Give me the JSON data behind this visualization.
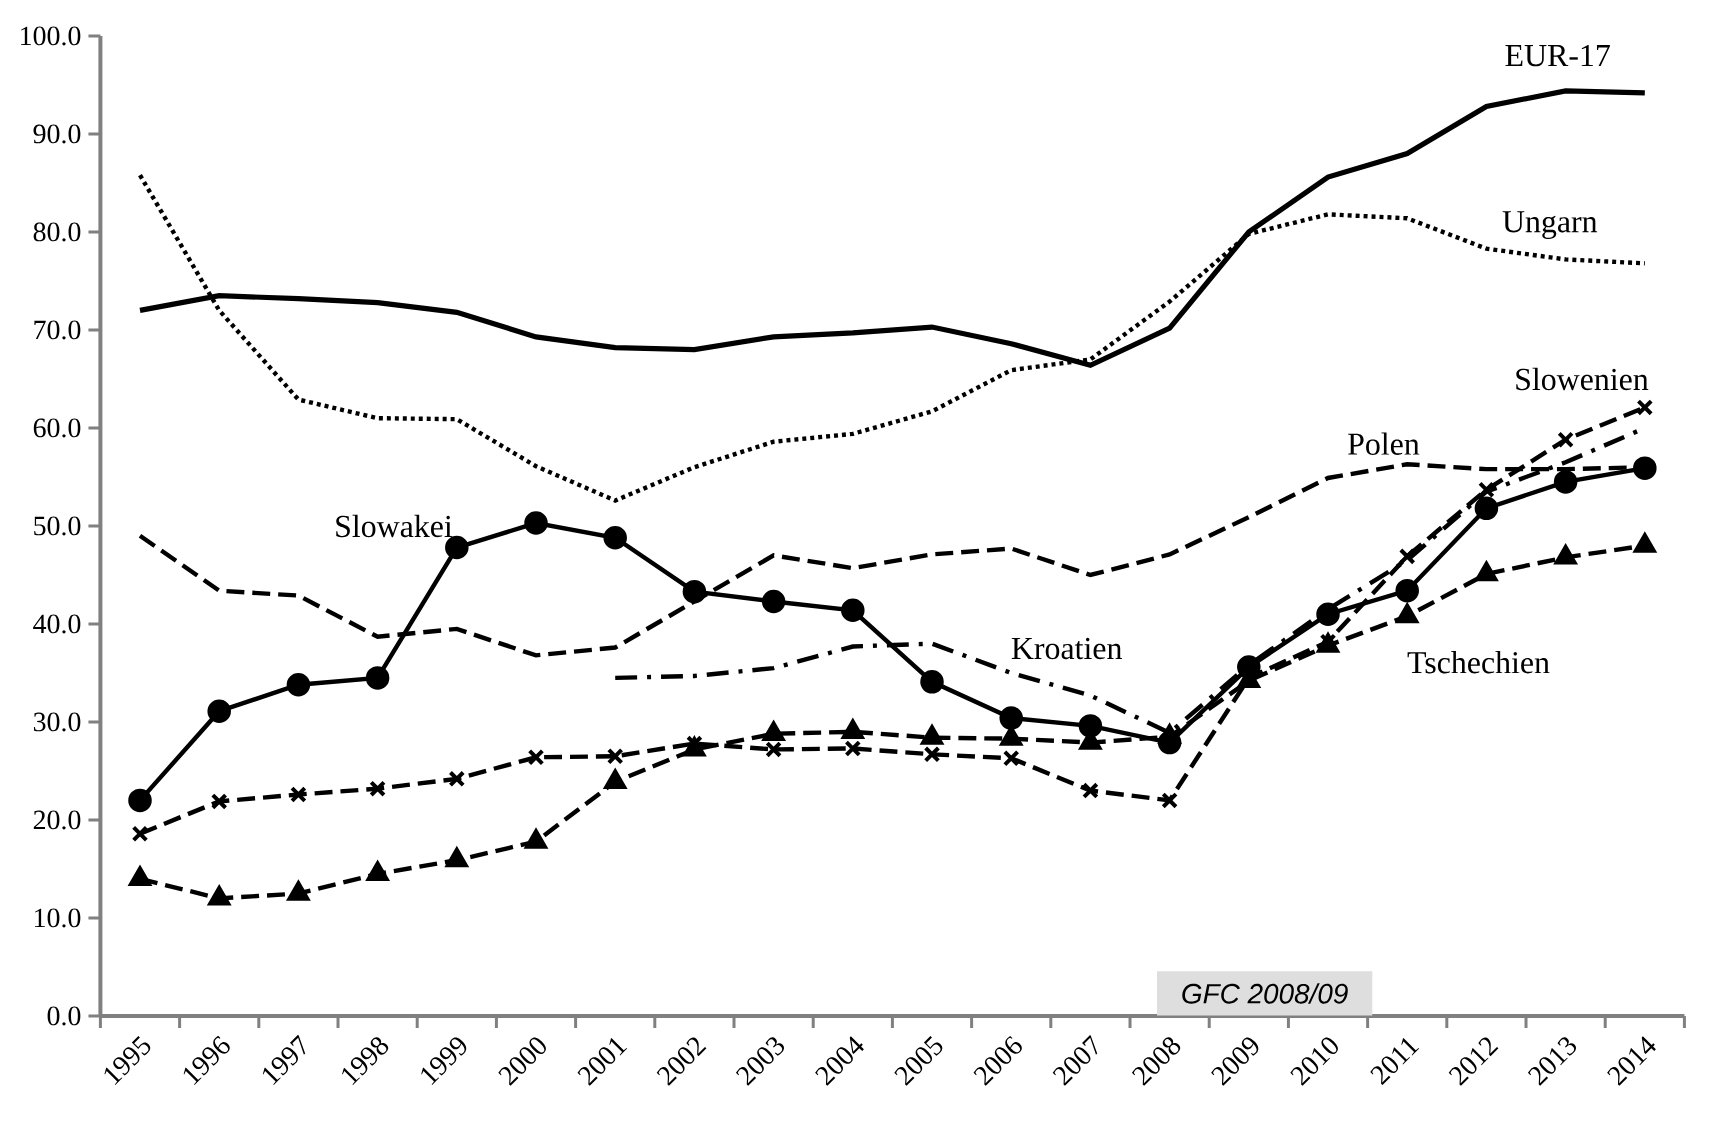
{
  "chart_data": {
    "type": "line",
    "categories": [
      "1995",
      "1996",
      "1997",
      "1998",
      "1999",
      "2000",
      "2001",
      "2002",
      "2003",
      "2004",
      "2005",
      "2006",
      "2007",
      "2008",
      "2009",
      "2010",
      "2011",
      "2012",
      "2013",
      "2014"
    ],
    "series": [
      {
        "name": "EUR-17",
        "color": "#000000",
        "line_style": "solid",
        "marker": "none",
        "values": [
          72.0,
          73.5,
          73.2,
          72.8,
          71.8,
          69.3,
          68.2,
          68.0,
          69.3,
          69.7,
          70.3,
          68.6,
          66.4,
          70.2,
          80.0,
          85.6,
          88.0,
          92.8,
          94.4,
          94.2
        ]
      },
      {
        "name": "Ungarn",
        "color": "#000000",
        "line_style": "dotted",
        "marker": "none",
        "values": [
          85.8,
          72.0,
          62.9,
          61.0,
          60.9,
          56.1,
          52.6,
          56.0,
          58.6,
          59.4,
          61.7,
          65.9,
          67.0,
          72.9,
          79.8,
          81.8,
          81.4,
          78.3,
          77.2,
          76.8
        ]
      },
      {
        "name": "Polen",
        "color": "#000000",
        "line_style": "dashed",
        "marker": "none",
        "values": [
          49.0,
          43.4,
          42.9,
          38.7,
          39.5,
          36.8,
          37.6,
          42.3,
          47.0,
          45.7,
          47.1,
          47.7,
          45.0,
          47.1,
          50.9,
          54.9,
          56.3,
          55.8,
          55.8,
          56.0
        ]
      },
      {
        "name": "Slowakei",
        "color": "#000000",
        "line_style": "solid",
        "marker": "circle",
        "values": [
          22.0,
          31.1,
          33.8,
          34.5,
          47.8,
          50.3,
          48.8,
          43.3,
          42.3,
          41.4,
          34.1,
          30.4,
          29.6,
          27.9,
          35.6,
          41.0,
          43.4,
          51.8,
          54.5,
          55.9
        ]
      },
      {
        "name": "Kroatien",
        "color": "#000000",
        "line_style": "dashdot",
        "marker": "none",
        "values": [
          null,
          null,
          null,
          null,
          null,
          null,
          34.5,
          34.7,
          35.5,
          37.7,
          38.0,
          35.0,
          32.7,
          28.9,
          35.8,
          41.5,
          46.5,
          53.5,
          56.5,
          60.0
        ]
      },
      {
        "name": "Slowenien",
        "color": "#000000",
        "line_style": "dashed",
        "marker": "cross",
        "values": [
          18.6,
          21.9,
          22.6,
          23.2,
          24.2,
          26.4,
          26.5,
          27.8,
          27.2,
          27.3,
          26.7,
          26.3,
          23.0,
          22.0,
          34.5,
          38.2,
          46.9,
          53.7,
          58.8,
          62.1
        ]
      },
      {
        "name": "Tschechien",
        "color": "#000000",
        "line_style": "dashed",
        "marker": "triangle",
        "values": [
          14.0,
          12.0,
          12.5,
          14.5,
          15.9,
          17.8,
          23.9,
          27.2,
          28.8,
          29.0,
          28.4,
          28.3,
          27.9,
          28.5,
          34.2,
          37.8,
          40.8,
          45.1,
          46.8,
          48.0
        ]
      }
    ],
    "ylim": [
      0,
      100
    ],
    "yticks": [
      {
        "value": 0,
        "label": "0.0"
      },
      {
        "value": 10,
        "label": "10.0"
      },
      {
        "value": 20,
        "label": "20.0"
      },
      {
        "value": 30,
        "label": "30.0"
      },
      {
        "value": 40,
        "label": "40.0"
      },
      {
        "value": 50,
        "label": "50.0"
      },
      {
        "value": 60,
        "label": "60.0"
      },
      {
        "value": 70,
        "label": "70.0"
      },
      {
        "value": 80,
        "label": "80.0"
      },
      {
        "value": 90,
        "label": "90.0"
      },
      {
        "value": 100,
        "label": "100.0"
      }
    ],
    "grid": false,
    "annotations": [
      "GFC 2008/09"
    ]
  }
}
